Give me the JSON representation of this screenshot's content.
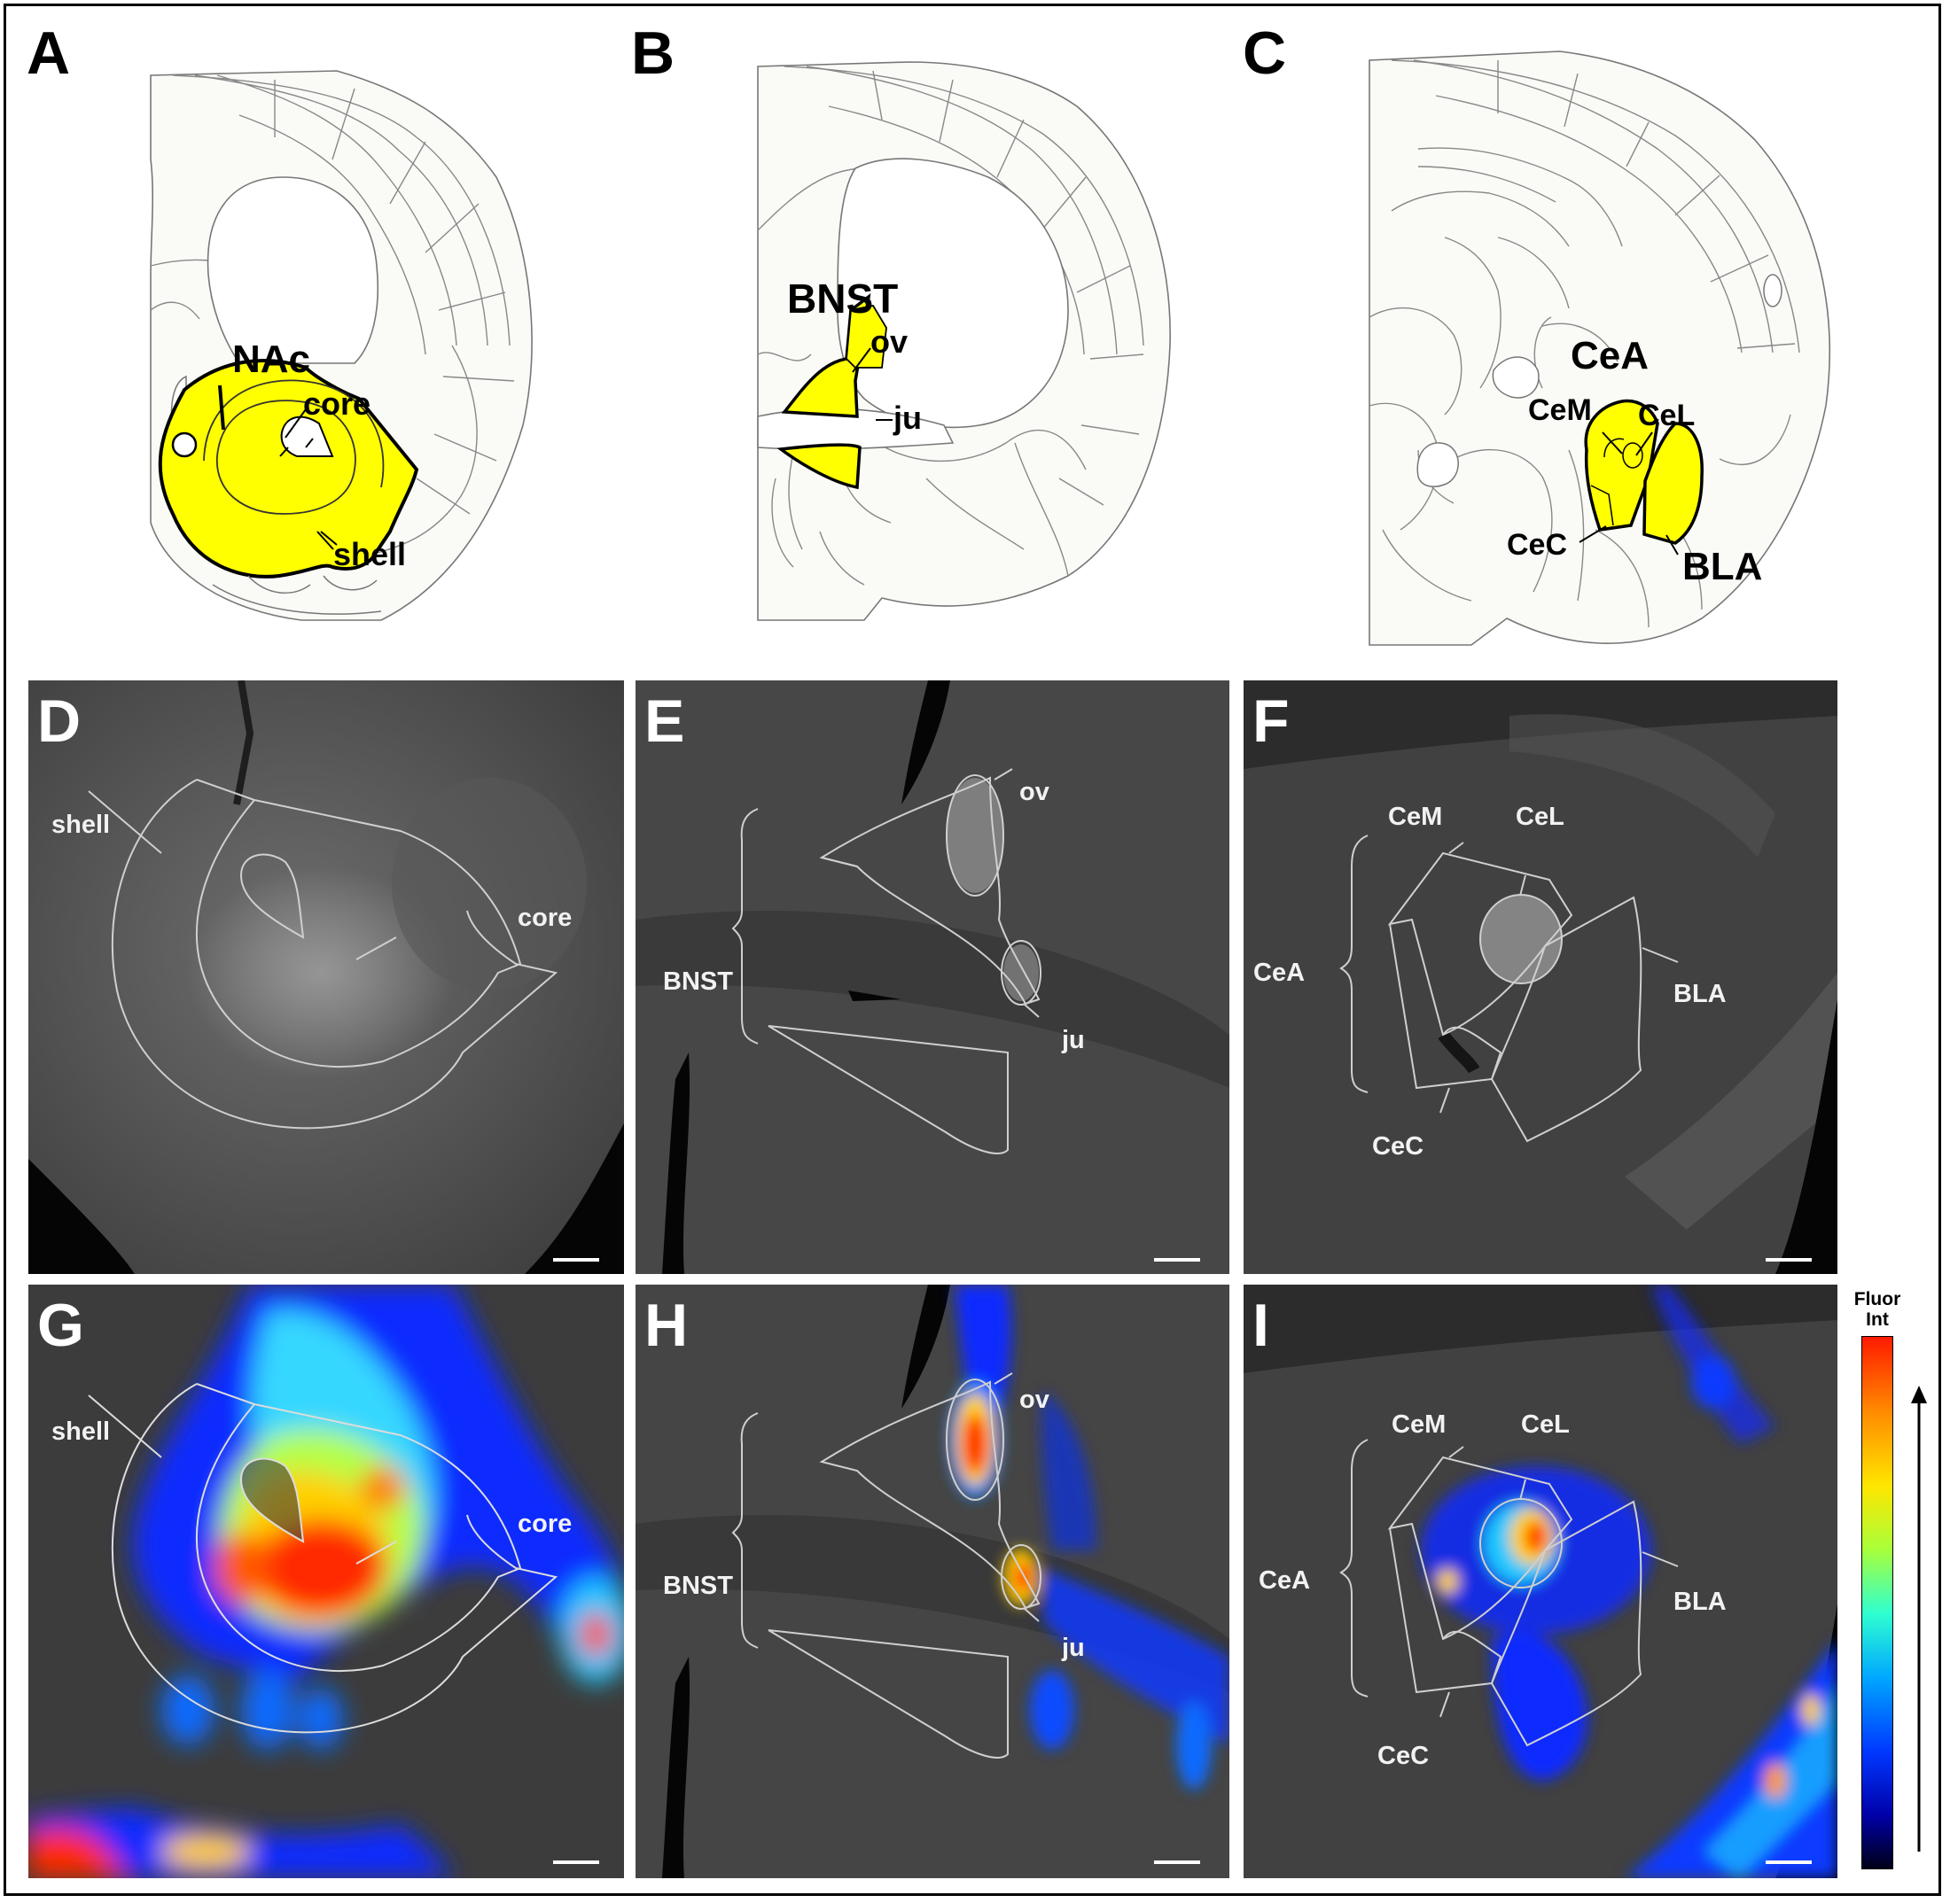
{
  "panel_letters": [
    "A",
    "B",
    "C",
    "D",
    "E",
    "F",
    "G",
    "H",
    "I"
  ],
  "atlas": {
    "a": {
      "region": "NAc",
      "core": "core",
      "shell": "shell"
    },
    "b": {
      "region": "BNST",
      "ov": "ov",
      "ju": "ju"
    },
    "c": {
      "region": "CeA",
      "cem": "CeM",
      "cel": "CeL",
      "cec": "CeC",
      "bla": "BLA"
    }
  },
  "photo_labels": {
    "nac": {
      "shell": "shell",
      "core": "core"
    },
    "bnst": {
      "region": "BNST",
      "ov": "ov",
      "ju": "ju"
    },
    "cea": {
      "region": "CeA",
      "cem": "CeM",
      "cel": "CeL",
      "cec": "CeC",
      "bla": "BLA"
    }
  },
  "colorbar": {
    "title_line1": "Fluor",
    "title_line2": "Int",
    "direction": "increasing upward"
  },
  "colors": {
    "highlight": "#ffff00",
    "outline": "#777777",
    "overlay_line": "#cfcfcf"
  }
}
